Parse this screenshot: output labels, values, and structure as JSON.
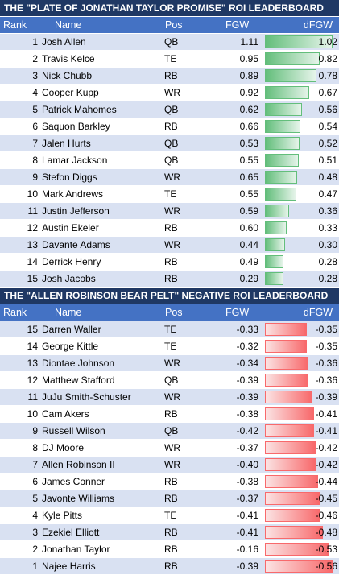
{
  "top_section": {
    "title": "THE \"PLATE OF JONATHAN TAYLOR PROMISE\" ROI LEADERBOARD",
    "headers": {
      "rank": "Rank",
      "name": "Name",
      "pos": "Pos",
      "fgw": "FGW",
      "dfgw": "dFGW"
    },
    "rows": [
      {
        "rank": "1",
        "name": "Josh Allen",
        "pos": "QB",
        "fgw": "1.11",
        "dfgw": "1.02",
        "bar": 1.02
      },
      {
        "rank": "2",
        "name": "Travis Kelce",
        "pos": "TE",
        "fgw": "0.95",
        "dfgw": "0.82",
        "bar": 0.82
      },
      {
        "rank": "3",
        "name": "Nick Chubb",
        "pos": "RB",
        "fgw": "0.89",
        "dfgw": "0.78",
        "bar": 0.78
      },
      {
        "rank": "4",
        "name": "Cooper Kupp",
        "pos": "WR",
        "fgw": "0.92",
        "dfgw": "0.67",
        "bar": 0.67
      },
      {
        "rank": "5",
        "name": "Patrick Mahomes",
        "pos": "QB",
        "fgw": "0.62",
        "dfgw": "0.56",
        "bar": 0.56
      },
      {
        "rank": "6",
        "name": "Saquon Barkley",
        "pos": "RB",
        "fgw": "0.66",
        "dfgw": "0.54",
        "bar": 0.54
      },
      {
        "rank": "7",
        "name": "Jalen Hurts",
        "pos": "QB",
        "fgw": "0.53",
        "dfgw": "0.52",
        "bar": 0.52
      },
      {
        "rank": "8",
        "name": "Lamar Jackson",
        "pos": "QB",
        "fgw": "0.55",
        "dfgw": "0.51",
        "bar": 0.51
      },
      {
        "rank": "9",
        "name": "Stefon Diggs",
        "pos": "WR",
        "fgw": "0.65",
        "dfgw": "0.48",
        "bar": 0.48
      },
      {
        "rank": "10",
        "name": "Mark Andrews",
        "pos": "TE",
        "fgw": "0.55",
        "dfgw": "0.47",
        "bar": 0.47
      },
      {
        "rank": "11",
        "name": "Justin Jefferson",
        "pos": "WR",
        "fgw": "0.59",
        "dfgw": "0.36",
        "bar": 0.36
      },
      {
        "rank": "12",
        "name": "Austin Ekeler",
        "pos": "RB",
        "fgw": "0.60",
        "dfgw": "0.33",
        "bar": 0.33
      },
      {
        "rank": "13",
        "name": "Davante Adams",
        "pos": "WR",
        "fgw": "0.44",
        "dfgw": "0.30",
        "bar": 0.3
      },
      {
        "rank": "14",
        "name": "Derrick Henry",
        "pos": "RB",
        "fgw": "0.49",
        "dfgw": "0.28",
        "bar": 0.28
      },
      {
        "rank": "15",
        "name": "Josh Jacobs",
        "pos": "RB",
        "fgw": "0.29",
        "dfgw": "0.28",
        "bar": 0.28
      }
    ]
  },
  "bottom_section": {
    "title": "THE \"ALLEN ROBINSON BEAR PELT\" NEGATIVE ROI LEADERBOARD",
    "headers": {
      "rank": "Rank",
      "name": "Name",
      "pos": "Pos",
      "fgw": "FGW",
      "dfgw": "dFGW"
    },
    "rows": [
      {
        "rank": "15",
        "name": "Darren Waller",
        "pos": "TE",
        "fgw": "-0.33",
        "dfgw": "-0.35",
        "bar": -0.35
      },
      {
        "rank": "14",
        "name": "George Kittle",
        "pos": "TE",
        "fgw": "-0.32",
        "dfgw": "-0.35",
        "bar": -0.35
      },
      {
        "rank": "13",
        "name": "Diontae Johnson",
        "pos": "WR",
        "fgw": "-0.34",
        "dfgw": "-0.36",
        "bar": -0.36
      },
      {
        "rank": "12",
        "name": "Matthew Stafford",
        "pos": "QB",
        "fgw": "-0.39",
        "dfgw": "-0.36",
        "bar": -0.36
      },
      {
        "rank": "11",
        "name": "JuJu Smith-Schuster",
        "pos": "WR",
        "fgw": "-0.39",
        "dfgw": "-0.39",
        "bar": -0.39
      },
      {
        "rank": "10",
        "name": "Cam Akers",
        "pos": "RB",
        "fgw": "-0.38",
        "dfgw": "-0.41",
        "bar": -0.41
      },
      {
        "rank": "9",
        "name": "Russell Wilson",
        "pos": "QB",
        "fgw": "-0.42",
        "dfgw": "-0.41",
        "bar": -0.41
      },
      {
        "rank": "8",
        "name": "DJ Moore",
        "pos": "WR",
        "fgw": "-0.37",
        "dfgw": "-0.42",
        "bar": -0.42
      },
      {
        "rank": "7",
        "name": "Allen Robinson II",
        "pos": "WR",
        "fgw": "-0.40",
        "dfgw": "-0.42",
        "bar": -0.42
      },
      {
        "rank": "6",
        "name": "James Conner",
        "pos": "RB",
        "fgw": "-0.38",
        "dfgw": "-0.44",
        "bar": -0.44
      },
      {
        "rank": "5",
        "name": "Javonte Williams",
        "pos": "RB",
        "fgw": "-0.37",
        "dfgw": "-0.45",
        "bar": -0.45
      },
      {
        "rank": "4",
        "name": "Kyle Pitts",
        "pos": "TE",
        "fgw": "-0.41",
        "dfgw": "-0.46",
        "bar": -0.46
      },
      {
        "rank": "3",
        "name": "Ezekiel Elliott",
        "pos": "RB",
        "fgw": "-0.41",
        "dfgw": "-0.48",
        "bar": -0.48
      },
      {
        "rank": "2",
        "name": "Jonathan Taylor",
        "pos": "RB",
        "fgw": "-0.16",
        "dfgw": "-0.53",
        "bar": -0.53
      },
      {
        "rank": "1",
        "name": "Najee Harris",
        "pos": "RB",
        "fgw": "-0.39",
        "dfgw": "-0.56",
        "bar": -0.56
      }
    ]
  },
  "colors": {
    "title_bg": "#1f3864",
    "header_bg": "#4472c4",
    "band_row": "#d9e1f2",
    "positive_bar": "#63be7b",
    "negative_bar": "#f8696b"
  }
}
